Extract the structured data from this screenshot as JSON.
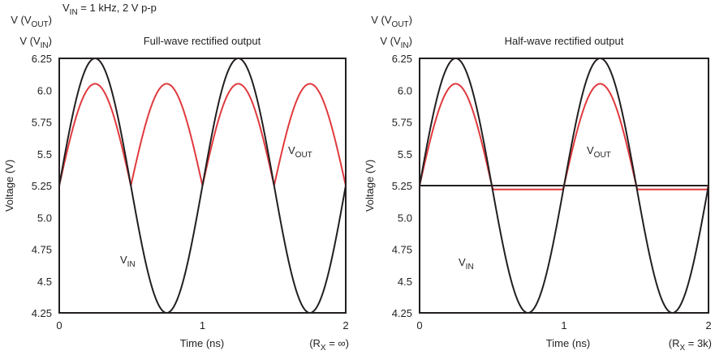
{
  "figure": {
    "header_annotation": {
      "main": "V",
      "sub": "IN",
      "rest": " = 1 kHz, 2 V p-p"
    },
    "colors": {
      "vin": "#231f20",
      "vout": "#e03a3e",
      "axis": "#231f20"
    }
  },
  "chart_data": [
    {
      "type": "line",
      "title": "Full-wave rectified output",
      "xlabel": "Time (ns)",
      "ylabel": "Voltage (V)",
      "y_header_top": {
        "main": "V (V",
        "sub": "OUT",
        "tail": ")"
      },
      "y_header_bottom": {
        "main": "V (V",
        "sub": "IN",
        "tail": ")"
      },
      "corner_note": {
        "main": "(R",
        "sub": "X",
        "tail": " = ∞)"
      },
      "xlim": [
        0,
        2
      ],
      "ylim": [
        4.25,
        6.25
      ],
      "xticks": [
        "0",
        "1",
        "2"
      ],
      "xtick_values": [
        0,
        1,
        2
      ],
      "yticks": [
        "6.25",
        "6.0",
        "5.75",
        "5.5",
        "5.25",
        "5.0",
        "4.75",
        "4.5",
        "4.25"
      ],
      "ytick_values": [
        6.25,
        6.0,
        5.75,
        5.5,
        5.25,
        5.0,
        4.75,
        4.5,
        4.25
      ],
      "grid": false,
      "reference_line": null,
      "series": [
        {
          "name": "VIN",
          "label_main": "V",
          "label_sub": "IN",
          "color": "#231f20",
          "model": "sine",
          "offset": 5.25,
          "amplitude": 1.0,
          "period": 1.0,
          "x": [
            0,
            0.25,
            0.5,
            0.75,
            1.0,
            1.25,
            1.5,
            1.75,
            2.0
          ],
          "y": [
            5.25,
            6.25,
            5.25,
            4.25,
            5.25,
            6.25,
            5.25,
            4.25,
            5.25
          ]
        },
        {
          "name": "VOUT",
          "label_main": "V",
          "label_sub": "OUT",
          "color": "#e03a3e",
          "model": "full-wave",
          "offset": 5.25,
          "amplitude": 0.8,
          "period": 1.0,
          "x": [
            0,
            0.25,
            0.5,
            0.75,
            1.0,
            1.25,
            1.5,
            1.75,
            2.0
          ],
          "y": [
            5.25,
            6.05,
            5.25,
            6.05,
            5.25,
            6.05,
            5.25,
            6.05,
            5.25
          ]
        }
      ],
      "annotations": [
        {
          "text": "VOUT",
          "at_series": "VOUT"
        },
        {
          "text": "VIN",
          "at_series": "VIN"
        }
      ]
    },
    {
      "type": "line",
      "title": "Half-wave rectified output",
      "xlabel": "Time (ns)",
      "ylabel": "Voltage (V)",
      "y_header_top": {
        "main": "V (V",
        "sub": "OUT",
        "tail": ")"
      },
      "y_header_bottom": {
        "main": "V (V",
        "sub": "IN",
        "tail": ")"
      },
      "corner_note": {
        "main": "(R",
        "sub": "X",
        "tail": " = 3k)"
      },
      "xlim": [
        0,
        2
      ],
      "ylim": [
        4.25,
        6.25
      ],
      "xticks": [
        "0",
        "1",
        "2"
      ],
      "xtick_values": [
        0,
        1,
        2
      ],
      "yticks": [
        "6.25",
        "6.0",
        "5.75",
        "5.5",
        "5.25",
        "5.0",
        "4.75",
        "4.5",
        "4.25"
      ],
      "ytick_values": [
        6.25,
        6.0,
        5.75,
        5.5,
        5.25,
        5.0,
        4.75,
        4.5,
        4.25
      ],
      "grid": false,
      "reference_line": 5.25,
      "series": [
        {
          "name": "VIN",
          "label_main": "V",
          "label_sub": "IN",
          "color": "#231f20",
          "model": "sine",
          "offset": 5.25,
          "amplitude": 1.0,
          "period": 1.0,
          "x": [
            0,
            0.25,
            0.5,
            0.75,
            1.0,
            1.25,
            1.5,
            1.75,
            2.0
          ],
          "y": [
            5.25,
            6.25,
            5.25,
            4.25,
            5.25,
            6.25,
            5.25,
            4.25,
            5.25
          ]
        },
        {
          "name": "VOUT",
          "label_main": "V",
          "label_sub": "OUT",
          "color": "#e03a3e",
          "model": "half-wave",
          "offset": 5.25,
          "amplitude": 0.8,
          "floor": 5.22,
          "period": 1.0,
          "x": [
            0,
            0.25,
            0.5,
            0.75,
            1.0,
            1.25,
            1.5,
            1.75,
            2.0
          ],
          "y": [
            5.25,
            6.05,
            5.23,
            5.22,
            5.25,
            6.05,
            5.23,
            5.22,
            5.22
          ]
        }
      ],
      "annotations": [
        {
          "text": "VOUT",
          "at_series": "VOUT"
        },
        {
          "text": "VIN",
          "at_series": "VIN"
        }
      ]
    }
  ]
}
